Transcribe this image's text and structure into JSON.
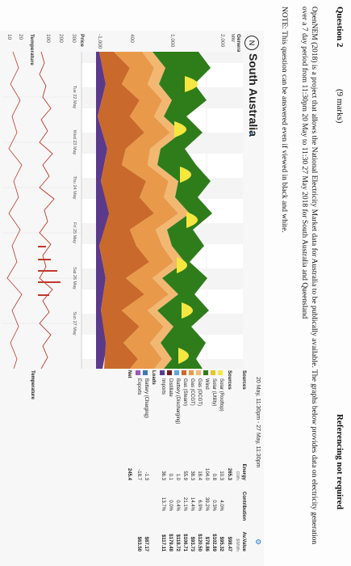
{
  "header": {
    "question": "Question 2",
    "marks": "(9 marks)",
    "referencing": "Referencing not required"
  },
  "paragraph": "OpenNEM (2018) is a project that allows the National Electricity Market data for Australia to be publically available. The graphs below provides data on electricity generation over a 7 day period from 11:30pm 20 May to 11:30 27 May 2018 for South Australia and Queensland",
  "note": "NOTE: This question can be answered even if viewed in black and white.",
  "screenshot": {
    "logo": "N",
    "region": "South Australia",
    "chevron": "⌄",
    "date_range": "20 May, 11:30pm - 27 May, 11:30pm",
    "settings_glyph": "⚙",
    "panels": {
      "generation": "Generation",
      "generation_unit": "MW",
      "price": "Price",
      "temperature": "Temperature"
    },
    "y_ticks_gen": [
      "2,000",
      "1,000",
      "400",
      "-1,000"
    ],
    "y_ticks_price": [
      "300",
      "200",
      "100"
    ],
    "y_ticks_temp": [
      "20",
      "10"
    ],
    "day_labels": [
      "Tue\n22 May",
      "Wed\n23 May",
      "Thu\n24 May",
      "Fri\n25 May",
      "Sat\n26 May",
      "Sun\n27 May"
    ],
    "table": {
      "headers": [
        "Sources",
        "Energy",
        "Contribution",
        "Av.Value"
      ],
      "units": [
        "",
        "GWh",
        "",
        "$/MWh"
      ],
      "sources": [
        {
          "name": "Solar (Rooftop)",
          "energy": "10.3",
          "contribution": "4.0%",
          "value": "$95.32",
          "color": "#f5e640"
        },
        {
          "name": "Solar (Utility)",
          "energy": "0.8",
          "contribution": "0.3%",
          "value": "$102.89",
          "color": "#e9c622"
        },
        {
          "name": "Wind",
          "energy": "104.0",
          "contribution": "39.2%",
          "value": "$78.86",
          "color": "#2e7d1a"
        },
        {
          "name": "Gas (OCGT)",
          "energy": "18.4",
          "contribution": "6.9%",
          "value": "$120.50",
          "color": "#f2b872"
        },
        {
          "name": "Gas (CCGT)",
          "energy": "38.3",
          "contribution": "14.4%",
          "value": "$93.73",
          "color": "#e89a4a"
        },
        {
          "name": "Gas (Steam)",
          "energy": "55.9",
          "contribution": "21.1%",
          "value": "$106.71",
          "color": "#c96a2c"
        },
        {
          "name": "Battery (Discharging)",
          "energy": "1.0",
          "contribution": "0.4%",
          "value": "$118.72",
          "color": "#5da8d8"
        },
        {
          "name": "Distillate",
          "energy": "0.1",
          "contribution": "0.0%",
          "value": "$179.48",
          "color": "#7a1f1f"
        },
        {
          "name": "Imports",
          "energy": "36.3",
          "contribution": "13.7%",
          "value": "$117.11",
          "color": "#5b3a8c"
        }
      ],
      "total_label": "Sources",
      "total_energy": "265.3",
      "total_value": "$98.47",
      "loads_label": "Loads",
      "loads": [
        {
          "name": "Battery (Charging)",
          "energy": "-1.3",
          "value": "$87.17",
          "color": "#3f78b5"
        },
        {
          "name": "Exports",
          "energy": "-18.7",
          "value": "$63.50",
          "color": "#9b59b6"
        }
      ],
      "net_label": "Net",
      "net_energy": "245.4"
    }
  }
}
